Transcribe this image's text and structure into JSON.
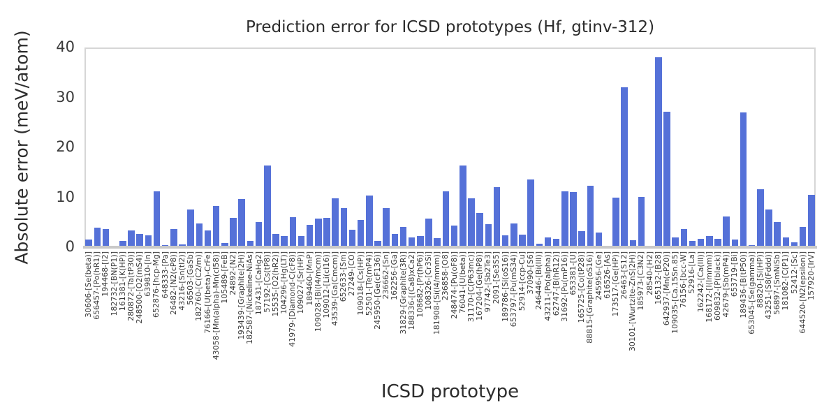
{
  "chart_data": {
    "type": "bar",
    "title": "Prediction error for ICSD prototypes (Hf, gtinv-312)",
    "xlabel": "ICSD prototype",
    "ylabel": "Absolute error (meV/atom)",
    "ylim": [
      0,
      40
    ],
    "yticks": [
      0,
      10,
      20,
      30,
      40
    ],
    "grid": "horizontal-dashed",
    "legend": "none",
    "bar_color": "#5571d8",
    "categories": [
      "30606-[Se(beta)]",
      "656457-[Po(hR1)]",
      "194468-[I2]",
      "182732-[BN(P1)]",
      "161381-[K(HP)]",
      "280872-[Ta(tP30)]",
      "248500-[O2(mS4)]",
      "639810-[In]",
      "652876-[hcp-Mg]",
      "648333-[Pa]",
      "26482-[N2(cP8)]",
      "43216-[Sn(tI2)]",
      "56503-[GaSb]",
      "182760-[C(C2/m)]",
      "76166-[U(beta)-CrFe]",
      "43058-[Mn(alpha)-Mn(cI58)]",
      "105489-[FeB]",
      "24892-[N2]",
      "193439-[Graphite(2H)]",
      "182587-[Nickeline-NiAs]",
      "187431-[CaHg2]",
      "57192-[Cs(tP8)]",
      "15535-[O2(hR2)]",
      "104296-[Hg(LT)]",
      "41979-[Diamond-C(cF8)]",
      "109027-[Sr(HP)]",
      "189460-[MnP]",
      "109028-[Bi(I4/mcm)]",
      "109012-[Li(cI16)]",
      "43539-[Ga(Cmcm)]",
      "652633-[Sm]",
      "27249-[CO]",
      "109018-[Cs(HP)]",
      "52501-[Te(mP4)]",
      "245950-[Ge(cF136)]",
      "236662-[Sn]",
      "162256-[Ga]",
      "31829-[Graphite(3R)]",
      "188336-[(Ca8)xCa2]",
      "108682-[Pr(hP6)]",
      "108326-[Cr3Si]",
      "181908-[Si(I4/mmm)]",
      "236858-[O8]",
      "248474-[Pu(oF8)]",
      "76041-[U(beta)]",
      "31170-[C(P63mc)]",
      "167204-[Ge(hP8)]",
      "97742-[Sb2Te3]",
      "2091-[Se3S5]",
      "189786-[Si(oS16)]",
      "653797-[Pu(mS34)]",
      "52914-[ccp-Cu]",
      "37090-[S6]",
      "246446-[Bi(III)]",
      "43211-[Po(alpha)]",
      "62747-[B(hR12)]",
      "31692-[Pu(mP16)]",
      "653381-[U]",
      "165725-[Co(tP28)]",
      "88815-[Graphite(oS16)]",
      "245956-[Ge]",
      "616526-[As]",
      "173517-[Ge(HP)]",
      "26463-[S12]",
      "30101-[Wurtzite-ZnS(2H)]",
      "185973-[C3N2]",
      "28540-[H2]",
      "165132-[B28]",
      "642937-[Mn(cP20)]",
      "109035-[Ca.15Sn.85]",
      "76156-[bcc-W]",
      "52916-[La]",
      "162242-[Ca(III)]",
      "168172-[I(Immm)]",
      "609832-[P(black)]",
      "42679-[Sb(mP4)]",
      "653719-[Bi]",
      "189436-[B(tP50)]",
      "653045-[Se(gamma)]",
      "88820-[Si(HP)]",
      "43251-[S8(Fddd)]",
      "56897-[SmNiSb]",
      "181082-[C(P1)]",
      "52412-[Sc]",
      "644520-[N2(epsilon)]",
      "157920-[IrV]"
    ],
    "values": [
      1.5,
      3.9,
      3.7,
      0.3,
      1.2,
      3.3,
      2.7,
      2.4,
      11.2,
      0.4,
      3.6,
      0.5,
      7.6,
      4.8,
      3.3,
      8.2,
      0.8,
      5.9,
      9.6,
      1.3,
      5.0,
      16.3,
      2.7,
      2.3,
      6.0,
      2.2,
      4.5,
      5.8,
      5.9,
      9.8,
      7.8,
      3.5,
      5.4,
      10.3,
      1.2,
      7.9,
      2.6,
      4.1,
      2.0,
      2.2,
      5.8,
      1.8,
      11.2,
      4.3,
      16.3,
      9.8,
      6.9,
      4.6,
      12.0,
      2.4,
      4.7,
      2.5,
      13.6,
      0.7,
      2.0,
      1.7,
      11.2,
      11.1,
      3.2,
      12.3,
      2.9,
      0.1,
      9.9,
      32.0,
      1.4,
      10.1,
      0.2,
      38.0,
      27.1,
      1.9,
      3.7,
      1.2,
      1.7,
      2.3,
      1.7,
      6.2,
      1.5,
      27.0,
      0.4,
      11.6,
      7.5,
      5.0,
      1.9,
      1.0,
      4.0,
      10.5
    ]
  },
  "style": {
    "background": "#ffffff",
    "grid_color": "#cdcdcd",
    "spine_color": "#d6d6d6",
    "baseline_color": "#c9c9c9",
    "text_color": "#2d2d2d",
    "tick_color": "#3a3a3a"
  }
}
